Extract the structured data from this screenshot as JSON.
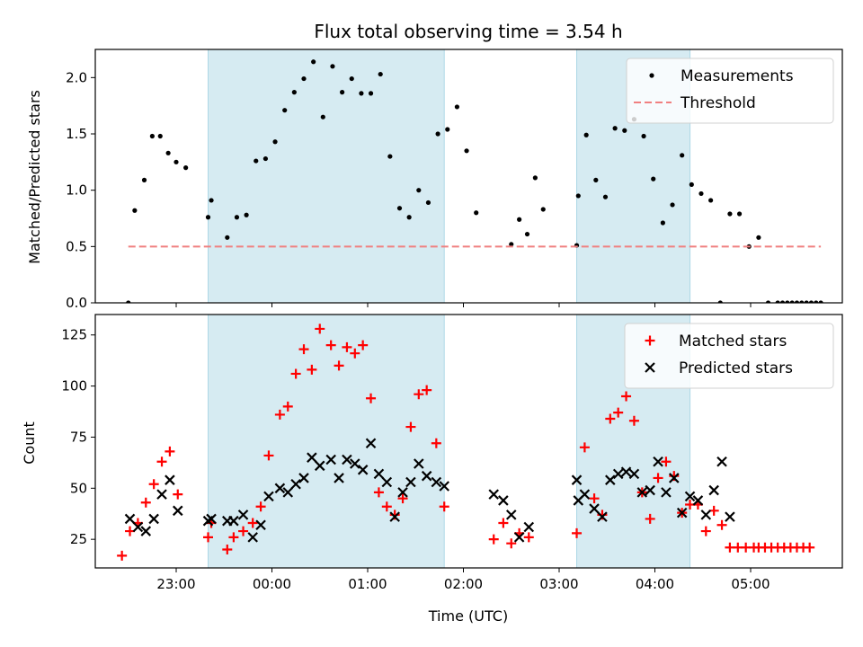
{
  "chart_data": [
    {
      "type": "scatter",
      "title": "Flux total observing time = 3.54 h",
      "xlabel": "",
      "ylabel": "Matched/Predicted stars",
      "ylim": [
        0,
        2.25
      ],
      "yticks": [
        0.0,
        0.5,
        1.0,
        1.5,
        2.0
      ],
      "ytick_labels": [
        "0.0",
        "0.5",
        "1.0",
        "1.5",
        "2.0"
      ],
      "legend_position": "top-right",
      "shaded_intervals": [
        [
          "23:20",
          "01:48"
        ],
        [
          "03:11",
          "04:22"
        ]
      ],
      "series": [
        {
          "name": "Measurements",
          "marker": "dot",
          "color": "#000000",
          "points": [
            [
              "22:30",
              0.0
            ],
            [
              "22:34",
              0.82
            ],
            [
              "22:40",
              1.09
            ],
            [
              "22:45",
              1.48
            ],
            [
              "22:50",
              1.48
            ],
            [
              "22:55",
              1.33
            ],
            [
              "23:00",
              1.25
            ],
            [
              "23:06",
              1.2
            ],
            [
              "23:20",
              0.76
            ],
            [
              "23:22",
              0.91
            ],
            [
              "23:32",
              0.58
            ],
            [
              "23:38",
              0.76
            ],
            [
              "23:44",
              0.78
            ],
            [
              "23:50",
              1.26
            ],
            [
              "23:56",
              1.28
            ],
            [
              "00:02",
              1.43
            ],
            [
              "00:08",
              1.71
            ],
            [
              "00:14",
              1.87
            ],
            [
              "00:20",
              1.99
            ],
            [
              "00:26",
              2.14
            ],
            [
              "00:32",
              1.65
            ],
            [
              "00:38",
              2.1
            ],
            [
              "00:44",
              1.87
            ],
            [
              "00:50",
              1.99
            ],
            [
              "00:56",
              1.86
            ],
            [
              "01:02",
              1.86
            ],
            [
              "01:08",
              2.03
            ],
            [
              "01:14",
              1.3
            ],
            [
              "01:20",
              0.84
            ],
            [
              "01:26",
              0.76
            ],
            [
              "01:32",
              1.0
            ],
            [
              "01:38",
              0.89
            ],
            [
              "01:44",
              1.5
            ],
            [
              "01:50",
              1.54
            ],
            [
              "01:56",
              1.74
            ],
            [
              "02:02",
              1.35
            ],
            [
              "02:08",
              0.8
            ],
            [
              "02:30",
              0.52
            ],
            [
              "02:35",
              0.74
            ],
            [
              "02:40",
              0.61
            ],
            [
              "02:45",
              1.11
            ],
            [
              "02:50",
              0.83
            ],
            [
              "03:11",
              0.51
            ],
            [
              "03:12",
              0.95
            ],
            [
              "03:17",
              1.49
            ],
            [
              "03:23",
              1.09
            ],
            [
              "03:29",
              0.94
            ],
            [
              "03:35",
              1.55
            ],
            [
              "03:41",
              1.53
            ],
            [
              "03:47",
              1.63
            ],
            [
              "03:53",
              1.48
            ],
            [
              "03:59",
              1.1
            ],
            [
              "04:05",
              0.71
            ],
            [
              "04:11",
              0.87
            ],
            [
              "04:17",
              1.31
            ],
            [
              "04:23",
              1.05
            ],
            [
              "04:29",
              0.97
            ],
            [
              "04:35",
              0.91
            ],
            [
              "04:41",
              0.0
            ],
            [
              "04:47",
              0.79
            ],
            [
              "04:53",
              0.79
            ],
            [
              "04:59",
              0.5
            ],
            [
              "05:05",
              0.58
            ],
            [
              "05:11",
              0.0
            ],
            [
              "05:17",
              0.0
            ],
            [
              "05:20",
              0.0
            ],
            [
              "05:23",
              0.0
            ],
            [
              "05:26",
              0.0
            ],
            [
              "05:29",
              0.0
            ],
            [
              "05:32",
              0.0
            ],
            [
              "05:35",
              0.0
            ],
            [
              "05:38",
              0.0
            ],
            [
              "05:41",
              0.0
            ],
            [
              "05:44",
              0.0
            ]
          ]
        },
        {
          "name": "Threshold",
          "marker": "dashed-line",
          "color": "#f08080",
          "points": [
            [
              "22:30",
              0.5
            ],
            [
              "05:44",
              0.5
            ]
          ]
        }
      ]
    },
    {
      "type": "scatter",
      "title": "",
      "xlabel": "Time (UTC)",
      "ylabel": "Count",
      "ylim": [
        11,
        135
      ],
      "yticks": [
        25,
        50,
        75,
        100,
        125
      ],
      "ytick_labels": [
        "25",
        "50",
        "75",
        "100",
        "125"
      ],
      "xticks": [
        "23:00",
        "00:00",
        "01:00",
        "02:00",
        "03:00",
        "04:00",
        "05:00"
      ],
      "xtick_labels": [
        "23:00",
        "00:00",
        "01:00",
        "02:00",
        "03:00",
        "04:00",
        "05:00"
      ],
      "legend_position": "top-right",
      "shaded_intervals": [
        [
          "23:20",
          "01:48"
        ],
        [
          "03:11",
          "04:22"
        ]
      ],
      "series": [
        {
          "name": "Matched stars",
          "marker": "plus",
          "color": "#ff0000",
          "points": [
            [
              "22:26",
              17
            ],
            [
              "22:31",
              29
            ],
            [
              "22:36",
              33
            ],
            [
              "22:41",
              43
            ],
            [
              "22:46",
              52
            ],
            [
              "22:51",
              63
            ],
            [
              "22:56",
              68
            ],
            [
              "23:01",
              47
            ],
            [
              "23:20",
              26
            ],
            [
              "23:22",
              33
            ],
            [
              "23:32",
              20
            ],
            [
              "23:36",
              26
            ],
            [
              "23:42",
              29
            ],
            [
              "23:48",
              33
            ],
            [
              "23:53",
              41
            ],
            [
              "23:58",
              66
            ],
            [
              "00:05",
              86
            ],
            [
              "00:10",
              90
            ],
            [
              "00:15",
              106
            ],
            [
              "00:20",
              118
            ],
            [
              "00:25",
              108
            ],
            [
              "00:30",
              128
            ],
            [
              "00:37",
              120
            ],
            [
              "00:42",
              110
            ],
            [
              "00:47",
              119
            ],
            [
              "00:52",
              116
            ],
            [
              "00:57",
              120
            ],
            [
              "01:02",
              94
            ],
            [
              "01:07",
              48
            ],
            [
              "01:12",
              41
            ],
            [
              "01:17",
              37
            ],
            [
              "01:22",
              45
            ],
            [
              "01:27",
              80
            ],
            [
              "01:32",
              96
            ],
            [
              "01:37",
              98
            ],
            [
              "01:43",
              72
            ],
            [
              "01:48",
              41
            ],
            [
              "02:19",
              25
            ],
            [
              "02:25",
              33
            ],
            [
              "02:30",
              23
            ],
            [
              "02:35",
              28
            ],
            [
              "02:41",
              26
            ],
            [
              "03:11",
              28
            ],
            [
              "03:16",
              70
            ],
            [
              "03:22",
              45
            ],
            [
              "03:27",
              37
            ],
            [
              "03:32",
              84
            ],
            [
              "03:37",
              87
            ],
            [
              "03:42",
              95
            ],
            [
              "03:47",
              83
            ],
            [
              "03:52",
              48
            ],
            [
              "03:57",
              35
            ],
            [
              "04:02",
              55
            ],
            [
              "04:07",
              63
            ],
            [
              "04:12",
              56
            ],
            [
              "04:17",
              38
            ],
            [
              "04:22",
              42
            ],
            [
              "04:27",
              42
            ],
            [
              "04:32",
              29
            ],
            [
              "04:37",
              39
            ],
            [
              "04:42",
              32
            ],
            [
              "04:47",
              21
            ],
            [
              "04:52",
              21
            ],
            [
              "04:57",
              21
            ],
            [
              "05:02",
              21
            ],
            [
              "05:05",
              21
            ],
            [
              "05:09",
              21
            ],
            [
              "05:13",
              21
            ],
            [
              "05:17",
              21
            ],
            [
              "05:21",
              21
            ],
            [
              "05:25",
              21
            ],
            [
              "05:29",
              21
            ],
            [
              "05:33",
              21
            ],
            [
              "05:37",
              21
            ]
          ]
        },
        {
          "name": "Predicted stars",
          "marker": "x",
          "color": "#000000",
          "points": [
            [
              "22:31",
              35
            ],
            [
              "22:36",
              31
            ],
            [
              "22:41",
              29
            ],
            [
              "22:46",
              35
            ],
            [
              "22:51",
              47
            ],
            [
              "22:56",
              54
            ],
            [
              "23:01",
              39
            ],
            [
              "23:20",
              34
            ],
            [
              "23:22",
              35
            ],
            [
              "23:32",
              34
            ],
            [
              "23:36",
              34
            ],
            [
              "23:42",
              37
            ],
            [
              "23:48",
              26
            ],
            [
              "23:53",
              32
            ],
            [
              "23:58",
              46
            ],
            [
              "00:05",
              50
            ],
            [
              "00:10",
              48
            ],
            [
              "00:15",
              52
            ],
            [
              "00:20",
              55
            ],
            [
              "00:25",
              65
            ],
            [
              "00:30",
              61
            ],
            [
              "00:37",
              64
            ],
            [
              "00:42",
              55
            ],
            [
              "00:47",
              64
            ],
            [
              "00:52",
              62
            ],
            [
              "00:57",
              59
            ],
            [
              "01:02",
              72
            ],
            [
              "01:07",
              57
            ],
            [
              "01:12",
              53
            ],
            [
              "01:17",
              36
            ],
            [
              "01:22",
              48
            ],
            [
              "01:27",
              53
            ],
            [
              "01:32",
              62
            ],
            [
              "01:37",
              56
            ],
            [
              "01:43",
              53
            ],
            [
              "01:48",
              51
            ],
            [
              "02:19",
              47
            ],
            [
              "02:25",
              44
            ],
            [
              "02:30",
              37
            ],
            [
              "02:35",
              26
            ],
            [
              "02:41",
              31
            ],
            [
              "03:11",
              54
            ],
            [
              "03:12",
              44
            ],
            [
              "03:16",
              47
            ],
            [
              "03:22",
              40
            ],
            [
              "03:27",
              36
            ],
            [
              "03:32",
              54
            ],
            [
              "03:37",
              57
            ],
            [
              "03:42",
              58
            ],
            [
              "03:47",
              57
            ],
            [
              "03:52",
              48
            ],
            [
              "03:57",
              49
            ],
            [
              "04:02",
              63
            ],
            [
              "04:07",
              48
            ],
            [
              "04:12",
              55
            ],
            [
              "04:17",
              38
            ],
            [
              "04:22",
              46
            ],
            [
              "04:27",
              44
            ],
            [
              "04:32",
              37
            ],
            [
              "04:37",
              49
            ],
            [
              "04:42",
              63
            ],
            [
              "04:47",
              36
            ]
          ]
        }
      ]
    }
  ],
  "colors": {
    "shading": "#add8e6",
    "matched": "#ff0000",
    "predicted": "#000000",
    "measurement": "#000000",
    "threshold": "#f08080"
  }
}
